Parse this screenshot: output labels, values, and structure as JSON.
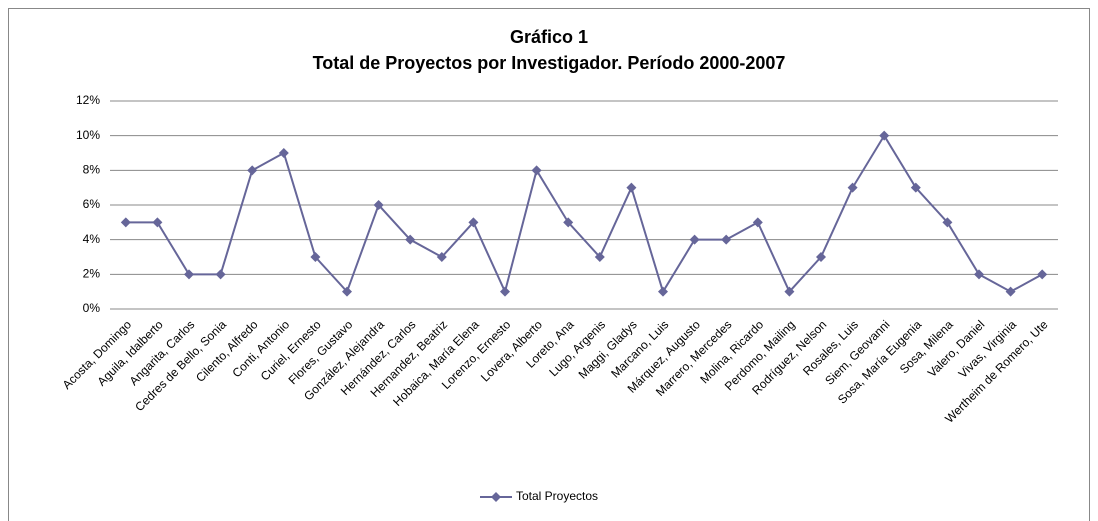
{
  "chart_data": {
    "type": "line",
    "title": "Gráfico 1",
    "subtitle": "Total de Proyectos por Investigador. Período 2000-2007",
    "categories": [
      "Acosta, Domingo",
      "Aguila, Idalberto",
      "Angarita, Carlos",
      "Cedres de Bello, Sonia",
      "Cilento, Alfredo",
      "Conti, Antonio",
      "Curiel, Ernesto",
      "Flores, Gustavo",
      "González, Alejandra",
      "Hernández, Carlos",
      "Hernandez, Beatriz",
      "Hobaica, María Elena",
      "Lorenzo, Ernesto",
      "Lovera, Alberto",
      "Loreto, Ana",
      "Lugo, Argenis",
      "Maggi, Gladys",
      "Marcano, Luis",
      "Márquez, Augusto",
      "Marrero, Mercedes",
      "Molina, Ricardo",
      "Perdomo, Mailing",
      "Rodríguez, Nelson",
      "Rosales, Luis",
      "Siem, Geovanni",
      "Sosa, María Eugenia",
      "Sosa, Milena",
      "Valero, Daniel",
      "Vivas, Virginia",
      "Wertheim de Romero, Ute"
    ],
    "series": [
      {
        "name": "Total Proyectos",
        "color": "#666699",
        "values": [
          5,
          5,
          2,
          2,
          8,
          9,
          3,
          1,
          6,
          4,
          3,
          5,
          1,
          8,
          5,
          3,
          7,
          1,
          4,
          4,
          5,
          1,
          3,
          7,
          10,
          7,
          5,
          2,
          1,
          2
        ]
      }
    ],
    "ylim": [
      0,
      12
    ],
    "yticks": [
      {
        "value": 0,
        "label": "0%"
      },
      {
        "value": 2,
        "label": "2%"
      },
      {
        "value": 4,
        "label": "4%"
      },
      {
        "value": 6,
        "label": "6%"
      },
      {
        "value": 8,
        "label": "8%"
      },
      {
        "value": 10,
        "label": "10%"
      },
      {
        "value": 12,
        "label": "12%"
      }
    ],
    "grid": true,
    "legend": "bottom"
  }
}
